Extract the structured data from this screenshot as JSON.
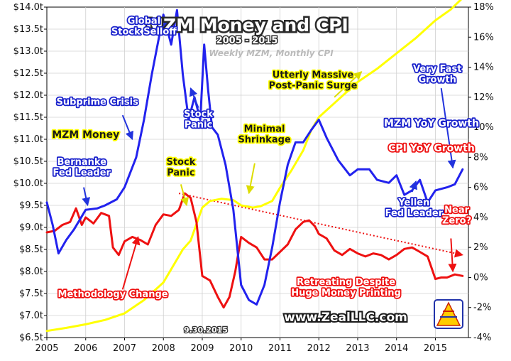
{
  "chart_data": {
    "type": "line",
    "title": "MZM Money and CPI",
    "subtitle": "2005 - 2015",
    "note": "Weekly MZM, Monthly CPI",
    "date_label": "9.30.2015",
    "website": "www.ZealLLC.com",
    "x_ticks": [
      "2005",
      "2006",
      "2007",
      "2008",
      "2009",
      "2010",
      "2011",
      "2012",
      "2013",
      "2014",
      "2015"
    ],
    "xlim": [
      2005.0,
      2015.85
    ],
    "y_left": {
      "lim": [
        6.5,
        14.0
      ],
      "ticks": [
        "$6.5t",
        "$7.0t",
        "$7.5t",
        "$8.0t",
        "$8.5t",
        "$9.0t",
        "$9.5t",
        "$10.0t",
        "$10.5t",
        "$11.0t",
        "$11.5t",
        "$12.0t",
        "$12.5t",
        "$13.0t",
        "$13.5t",
        "$14.0t"
      ]
    },
    "y_right": {
      "lim": [
        -4,
        18
      ],
      "ticks": [
        "-4%",
        "-2%",
        "0%",
        "2%",
        "4%",
        "6%",
        "8%",
        "10%",
        "12%",
        "14%",
        "16%",
        "18%"
      ]
    },
    "series": [
      {
        "name": "MZM Money",
        "axis": "left",
        "color": "#ffff00",
        "x": [
          2005.0,
          2005.5,
          2006.0,
          2006.5,
          2007.0,
          2007.5,
          2008.0,
          2008.2,
          2008.5,
          2008.7,
          2008.9,
          2009.0,
          2009.2,
          2009.5,
          2009.8,
          2010.0,
          2010.3,
          2010.5,
          2010.8,
          2011.0,
          2011.3,
          2011.6,
          2011.8,
          2012.0,
          2012.5,
          2013.0,
          2013.5,
          2014.0,
          2014.5,
          2015.0,
          2015.4,
          2015.75
        ],
        "y": [
          6.65,
          6.72,
          6.8,
          6.9,
          7.05,
          7.35,
          7.75,
          8.05,
          8.5,
          8.7,
          9.2,
          9.45,
          9.6,
          9.65,
          9.62,
          9.5,
          9.45,
          9.48,
          9.6,
          9.9,
          10.3,
          10.75,
          11.2,
          11.5,
          11.9,
          12.3,
          12.6,
          12.95,
          13.3,
          13.7,
          13.95,
          14.25
        ]
      },
      {
        "name": "MZM YoY Growth",
        "axis": "right",
        "color": "#2222ee",
        "x": [
          2005.0,
          2005.15,
          2005.3,
          2005.5,
          2005.7,
          2006.0,
          2006.3,
          2006.5,
          2006.8,
          2007.0,
          2007.3,
          2007.5,
          2007.7,
          2008.0,
          2008.2,
          2008.35,
          2008.5,
          2008.65,
          2008.8,
          2008.95,
          2009.05,
          2009.15,
          2009.25,
          2009.4,
          2009.6,
          2009.8,
          2010.0,
          2010.2,
          2010.4,
          2010.6,
          2010.8,
          2011.0,
          2011.2,
          2011.4,
          2011.6,
          2011.8,
          2012.0,
          2012.2,
          2012.5,
          2012.8,
          2013.0,
          2013.3,
          2013.5,
          2013.8,
          2014.0,
          2014.2,
          2014.4,
          2014.6,
          2014.8,
          2015.0,
          2015.3,
          2015.5,
          2015.7
        ],
        "y": [
          5.0,
          3.5,
          1.6,
          2.5,
          3.2,
          4.5,
          4.6,
          4.8,
          5.2,
          6.0,
          8.0,
          10.5,
          13.5,
          17.5,
          15.5,
          17.8,
          13.5,
          10.5,
          12.0,
          10.5,
          15.5,
          12.5,
          10.0,
          9.5,
          7.5,
          4.5,
          -0.5,
          -1.5,
          -1.8,
          -0.5,
          2.0,
          5.0,
          7.5,
          9.0,
          9.0,
          9.8,
          10.5,
          9.3,
          7.8,
          6.8,
          7.2,
          7.2,
          6.5,
          6.3,
          6.8,
          5.5,
          5.8,
          6.5,
          5.0,
          5.8,
          6.0,
          6.2,
          7.2
        ]
      },
      {
        "name": "CPI YoY Growth",
        "axis": "right",
        "color": "#ee1111",
        "x": [
          2005.0,
          2005.2,
          2005.4,
          2005.6,
          2005.75,
          2005.9,
          2006.0,
          2006.2,
          2006.4,
          2006.6,
          2006.7,
          2006.85,
          2007.0,
          2007.2,
          2007.4,
          2007.6,
          2007.8,
          2008.0,
          2008.2,
          2008.4,
          2008.55,
          2008.7,
          2008.85,
          2009.0,
          2009.2,
          2009.4,
          2009.55,
          2009.7,
          2009.85,
          2010.0,
          2010.2,
          2010.4,
          2010.6,
          2010.8,
          2011.0,
          2011.2,
          2011.4,
          2011.6,
          2011.75,
          2011.9,
          2012.0,
          2012.2,
          2012.4,
          2012.6,
          2012.8,
          2013.0,
          2013.2,
          2013.4,
          2013.6,
          2013.8,
          2014.0,
          2014.2,
          2014.4,
          2014.6,
          2014.8,
          2015.0,
          2015.15,
          2015.3,
          2015.5,
          2015.7
        ],
        "y": [
          3.0,
          3.1,
          3.5,
          3.7,
          4.6,
          3.5,
          4.0,
          3.6,
          4.3,
          4.1,
          2.0,
          1.5,
          2.4,
          2.7,
          2.5,
          2.2,
          3.5,
          4.2,
          4.1,
          4.5,
          5.6,
          5.3,
          3.7,
          0.1,
          -0.2,
          -1.3,
          -2.0,
          -1.3,
          0.4,
          2.7,
          2.3,
          2.0,
          1.2,
          1.2,
          1.7,
          2.2,
          3.2,
          3.7,
          3.8,
          3.4,
          2.9,
          2.6,
          1.8,
          1.5,
          1.9,
          1.6,
          1.4,
          1.6,
          1.5,
          1.2,
          1.5,
          1.9,
          2.0,
          1.7,
          1.4,
          -0.1,
          0.0,
          0.0,
          0.2,
          0.1
        ]
      }
    ],
    "trendline": {
      "axis": "right",
      "color": "#ee1111",
      "style": "dotted",
      "x": [
        2008.4,
        2015.7
      ],
      "y": [
        5.6,
        1.5
      ]
    },
    "annotations": [
      {
        "id": "global-stock-selloff",
        "lines": [
          "Global",
          "Stock Selloff"
        ],
        "color": "blue",
        "x": 2007.5,
        "y": 16.9
      },
      {
        "id": "subprime-crisis",
        "lines": [
          "Subprime Crisis"
        ],
        "color": "blue",
        "x": 2006.3,
        "y": 11.5
      },
      {
        "id": "bernanke-fed-leader",
        "lines": [
          "Bernanke",
          "Fed Leader"
        ],
        "color": "blue",
        "x": 2005.9,
        "y": 7.5
      },
      {
        "id": "stock-panic-blue",
        "lines": [
          "Stock",
          "Panic"
        ],
        "color": "blue",
        "x": 2008.9,
        "y": 10.7
      },
      {
        "id": "yellen-fed-leader",
        "lines": [
          "Yellen",
          "Fed Leader"
        ],
        "color": "blue",
        "x": 2014.45,
        "y": 4.8
      },
      {
        "id": "very-fast-growth",
        "lines": [
          "Very Fast",
          "Growth"
        ],
        "color": "blue",
        "x": 2015.05,
        "y": 13.7
      },
      {
        "id": "stock-panic-yellow",
        "lines": [
          "Stock",
          "Panic"
        ],
        "color": "yellow",
        "x": 2008.45,
        "y": 7.5
      },
      {
        "id": "minimal-shrinkage",
        "lines": [
          "Minimal",
          "Shrinkage"
        ],
        "color": "yellow",
        "x": 2010.6,
        "y": 9.7
      },
      {
        "id": "utterly-massive",
        "lines": [
          "Utterly Massive",
          "Post-Panic Surge"
        ],
        "color": "yellow",
        "x": 2011.85,
        "y": 13.3
      },
      {
        "id": "methodology-change",
        "lines": [
          "Methodology Change"
        ],
        "color": "red",
        "x": 2006.7,
        "y": -1.3
      },
      {
        "id": "retreating-despite",
        "lines": [
          "Retreating Despite",
          "Huge Money Printing"
        ],
        "color": "red",
        "x": 2012.7,
        "y": -0.5
      },
      {
        "id": "near-zero",
        "lines": [
          "Near",
          "Zero?"
        ],
        "color": "red",
        "x": 2015.55,
        "y": 4.3
      }
    ],
    "legend": [
      {
        "label": "MZM Money",
        "color": "yellow",
        "x": 2006.0,
        "y": 9.3
      },
      {
        "label": "MZM YoY Growth",
        "color": "blue",
        "x": 2014.9,
        "y": 10.05
      },
      {
        "label": "CPI YoY Growth",
        "color": "red",
        "x": 2014.9,
        "y": 8.4
      }
    ]
  }
}
